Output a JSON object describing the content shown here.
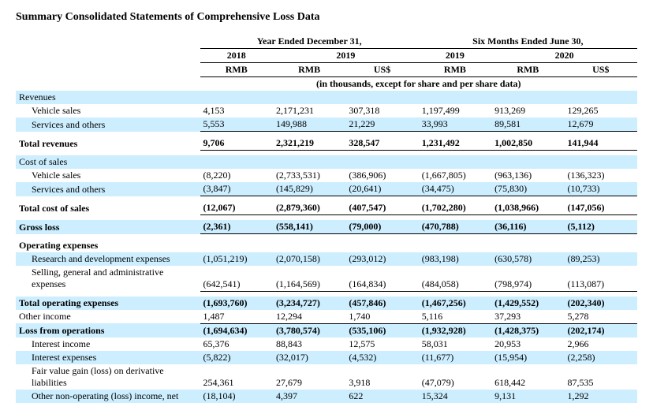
{
  "title": "Summary Consolidated Statements of Comprehensive Loss Data",
  "headers": {
    "group1": "Year Ended December 31,",
    "group2": "Six Months Ended June 30,",
    "y2018": "2018",
    "y2019a": "2019",
    "y2019b": "2019",
    "y2020": "2020",
    "rmb": "RMB",
    "usd": "US$",
    "note": "(in thousands, except for share and per share data)"
  },
  "sections": {
    "revenues": "Revenues",
    "vehicle_sales": "Vehicle sales",
    "services_others": "Services and others",
    "total_revenues": "Total revenues",
    "cost_of_sales": "Cost of sales",
    "total_cost_of_sales": "Total cost of sales",
    "gross_loss": "Gross loss",
    "operating_expenses": "Operating expenses",
    "rd_expenses": "Research and development expenses",
    "sga_expenses": "Selling, general and administrative expenses",
    "total_opex": "Total operating expenses",
    "other_income": "Other income",
    "loss_from_ops": "Loss from operations",
    "interest_income": "Interest income",
    "interest_expenses": "Interest expenses",
    "fv_gain": "Fair value gain (loss) on derivative liabilities",
    "other_nonop": "Other non-operating (loss) income, net"
  },
  "rows": {
    "vehicle_sales": [
      "4,153",
      "2,171,231",
      "307,318",
      "1,197,499",
      "913,269",
      "129,265"
    ],
    "services_others": [
      "5,553",
      "149,988",
      "21,229",
      "33,993",
      "89,581",
      "12,679"
    ],
    "total_revenues": [
      "9,706",
      "2,321,219",
      "328,547",
      "1,231,492",
      "1,002,850",
      "141,944"
    ],
    "cos_vehicle": [
      "(8,220)",
      "(2,733,531)",
      "(386,906)",
      "(1,667,805)",
      "(963,136)",
      "(136,323)"
    ],
    "cos_services": [
      "(3,847)",
      "(145,829)",
      "(20,641)",
      "(34,475)",
      "(75,830)",
      "(10,733)"
    ],
    "total_cos": [
      "(12,067)",
      "(2,879,360)",
      "(407,547)",
      "(1,702,280)",
      "(1,038,966)",
      "(147,056)"
    ],
    "gross_loss": [
      "(2,361)",
      "(558,141)",
      "(79,000)",
      "(470,788)",
      "(36,116)",
      "(5,112)"
    ],
    "rd": [
      "(1,051,219)",
      "(2,070,158)",
      "(293,012)",
      "(983,198)",
      "(630,578)",
      "(89,253)"
    ],
    "sga": [
      "(642,541)",
      "(1,164,569)",
      "(164,834)",
      "(484,058)",
      "(798,974)",
      "(113,087)"
    ],
    "total_opex": [
      "(1,693,760)",
      "(3,234,727)",
      "(457,846)",
      "(1,467,256)",
      "(1,429,552)",
      "(202,340)"
    ],
    "other_income": [
      "1,487",
      "12,294",
      "1,740",
      "5,116",
      "37,293",
      "5,278"
    ],
    "loss_from_ops": [
      "(1,694,634)",
      "(3,780,574)",
      "(535,106)",
      "(1,932,928)",
      "(1,428,375)",
      "(202,174)"
    ],
    "interest_income": [
      "65,376",
      "88,843",
      "12,575",
      "58,031",
      "20,953",
      "2,966"
    ],
    "interest_expenses": [
      "(5,822)",
      "(32,017)",
      "(4,532)",
      "(11,677)",
      "(15,954)",
      "(2,258)"
    ],
    "fv_gain": [
      "254,361",
      "27,679",
      "3,918",
      "(47,079)",
      "618,442",
      "87,535"
    ],
    "other_nonop": [
      "(18,104)",
      "4,397",
      "622",
      "15,324",
      "9,131",
      "1,292"
    ]
  },
  "style": {
    "shade_color": "#cceeff",
    "font_family": "Times New Roman",
    "title_fontsize": 14,
    "body_fontsize": 12
  }
}
